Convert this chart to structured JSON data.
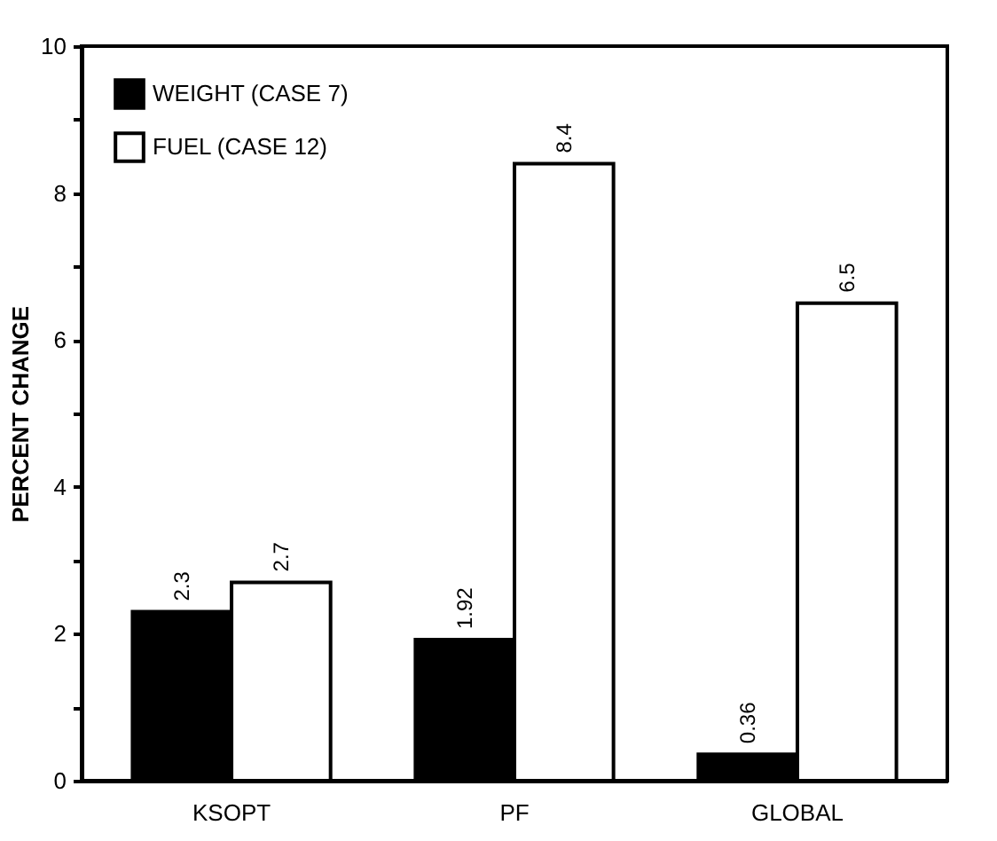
{
  "chart_data": {
    "type": "bar",
    "ylabel": "PERCENT CHANGE",
    "categories": [
      "KSOPT",
      "PF",
      "GLOBAL"
    ],
    "series": [
      {
        "name": "WEIGHT (CASE 7)",
        "color": "#000000",
        "values": [
          2.3,
          1.92,
          0.36
        ]
      },
      {
        "name": "FUEL (CASE 12)",
        "color": "#ffffff",
        "values": [
          2.7,
          8.4,
          6.5
        ]
      }
    ],
    "ylim": [
      0,
      10
    ],
    "yticks": [
      0,
      {
        "value": 1,
        "label": null
      },
      2,
      {
        "value": 3,
        "label": null
      },
      4,
      {
        "value": 5,
        "label": null
      },
      6,
      {
        "value": 7,
        "label": null
      },
      8,
      {
        "value": 9,
        "label": null
      },
      10
    ],
    "data_labels": true,
    "legend": "top left",
    "grid": false
  }
}
